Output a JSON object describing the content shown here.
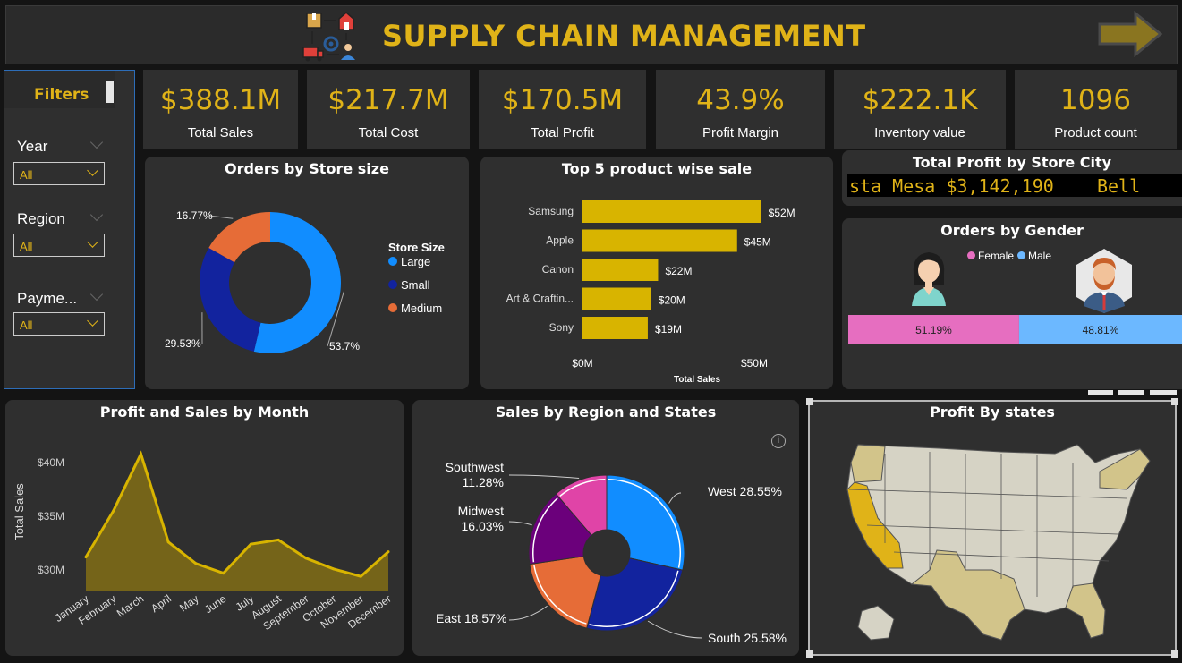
{
  "header": {
    "title": "SUPPLY CHAIN MANAGEMENT",
    "logo_icon": "supply-chain-icon",
    "nav_icon": "arrow-right-icon"
  },
  "kpis": [
    {
      "value": "$388.1M",
      "label": "Total Sales"
    },
    {
      "value": "$217.7M",
      "label": "Total Cost"
    },
    {
      "value": "$170.5M",
      "label": "Total Profit"
    },
    {
      "value": "43.9%",
      "label": "Profit Margin"
    },
    {
      "value": "$222.1K",
      "label": "Inventory value"
    },
    {
      "value": "1096",
      "label": "Product count"
    }
  ],
  "filters": {
    "title": "Filters",
    "items": [
      {
        "label": "Year",
        "value": "All"
      },
      {
        "label": "Region",
        "value": "All"
      },
      {
        "label": "Payme...",
        "value": "All"
      }
    ]
  },
  "store_size": {
    "title": "Orders by Store size",
    "legend_title": "Store Size",
    "chart_data": {
      "type": "pie",
      "donut": true,
      "slices": [
        {
          "name": "Large",
          "value": 53.7,
          "label": "53.7%",
          "color": "#118dff"
        },
        {
          "name": "Small",
          "value": 29.53,
          "label": "29.53%",
          "color": "#12239e"
        },
        {
          "name": "Medium",
          "value": 16.77,
          "label": "16.77%",
          "color": "#e66c37"
        }
      ]
    }
  },
  "top_products": {
    "title": "Top 5 product wise sale",
    "chart_data": {
      "type": "bar",
      "orientation": "horizontal",
      "categories": [
        "Samsung",
        "Apple",
        "Canon",
        "Art & Craftin...",
        "Sony"
      ],
      "values": [
        52,
        45,
        22,
        20,
        19
      ],
      "data_labels": [
        "$52M",
        "$45M",
        "$22M",
        "$20M",
        "$19M"
      ],
      "xlabel": "Total Sales",
      "xticks": [
        "$0M",
        "$50M"
      ],
      "xlim": [
        0,
        56
      ],
      "color": "#d8b400"
    }
  },
  "city_profit": {
    "title": "Total Profit by Store City",
    "ticker_text": "sta Mesa $3,142,190    Bell"
  },
  "gender": {
    "title": "Orders by Gender",
    "chart_data": {
      "type": "bar",
      "stacked": true,
      "series": [
        {
          "name": "Female",
          "value": 51.19,
          "label": "51.19%",
          "color": "#e66ec0"
        },
        {
          "name": "Male",
          "value": 48.81,
          "label": "48.81%",
          "color": "#6cb8ff"
        }
      ]
    }
  },
  "monthly": {
    "title": "Profit and Sales by Month",
    "chart_data": {
      "type": "area",
      "x": [
        "January",
        "February",
        "March",
        "April",
        "May",
        "June",
        "July",
        "August",
        "September",
        "October",
        "November",
        "December"
      ],
      "values": [
        31.2,
        35.5,
        40.8,
        32.6,
        30.6,
        29.7,
        32.4,
        32.8,
        31.1,
        30.1,
        29.4,
        31.7
      ],
      "ylabel": "Total Sales",
      "yticks": [
        {
          "v": 30,
          "label": "$30M"
        },
        {
          "v": 35,
          "label": "$35M"
        },
        {
          "v": 40,
          "label": "$40M"
        }
      ],
      "ylim": [
        28,
        42.5
      ],
      "line_color": "#d8b400",
      "fill_color": "#756419"
    }
  },
  "region": {
    "title": "Sales by Region and States",
    "info_icon": "info-icon",
    "chart_data": {
      "type": "pie",
      "donut": true,
      "slices": [
        {
          "name": "West",
          "value": 28.55,
          "label": "West 28.55%",
          "color": "#118dff"
        },
        {
          "name": "South",
          "value": 25.58,
          "label": "South 25.58%",
          "color": "#12239e"
        },
        {
          "name": "East",
          "value": 18.57,
          "label": "East 18.57%",
          "color": "#e66c37"
        },
        {
          "name": "Midwest",
          "value": 16.03,
          "label": "Midwest 16.03%",
          "color": "#6b007b"
        },
        {
          "name": "Southwest",
          "value": 11.28,
          "label": "Southwest 11.28%",
          "color": "#e044a7"
        }
      ]
    }
  },
  "states_map": {
    "title": "Profit By states",
    "map_icon": "us-map-icon",
    "colors": {
      "base": "#d6d3c5",
      "high": "#e0b318",
      "mid": "#d2c48a"
    }
  }
}
